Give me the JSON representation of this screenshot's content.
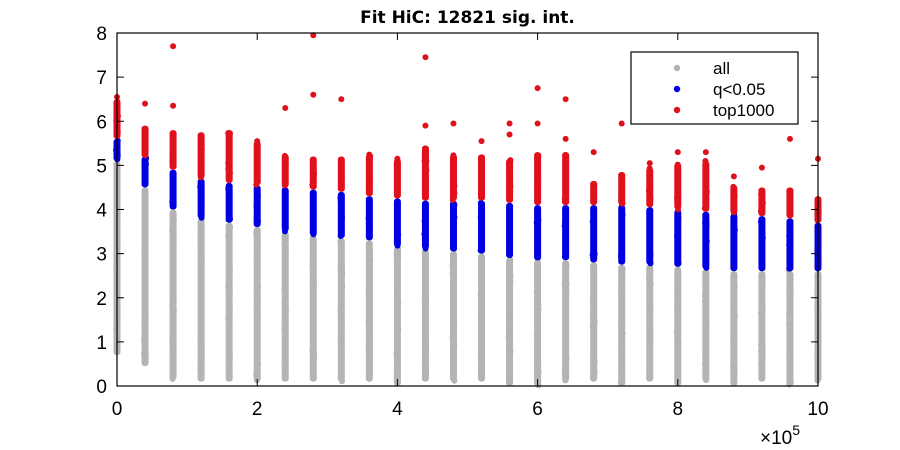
{
  "chart_data": {
    "type": "scatter",
    "title": "Fit HiC: 12821 sig. int.",
    "xlabel": "",
    "ylabel": "",
    "x_multiplier_label": "×10",
    "x_multiplier_exponent": "5",
    "xlim": [
      0,
      1000000
    ],
    "ylim": [
      0,
      8
    ],
    "xticks": [
      0,
      200000,
      400000,
      600000,
      800000,
      1000000
    ],
    "xtick_labels": [
      "0",
      "2",
      "4",
      "6",
      "8",
      "10"
    ],
    "yticks": [
      0,
      1,
      2,
      3,
      4,
      5,
      6,
      7,
      8
    ],
    "ytick_labels": [
      "0",
      "1",
      "2",
      "3",
      "4",
      "5",
      "6",
      "7",
      "8"
    ],
    "grid": false,
    "legend_position": "top-right",
    "distances": [
      0,
      40000,
      80000,
      120000,
      160000,
      200000,
      240000,
      280000,
      320000,
      360000,
      400000,
      440000,
      480000,
      520000,
      560000,
      600000,
      640000,
      680000,
      720000,
      760000,
      800000,
      840000,
      880000,
      920000,
      960000,
      1000000
    ],
    "series": [
      {
        "name": "all",
        "color": "#b4b4b4",
        "column_min": [
          0.7,
          0.45,
          0.15,
          0.1,
          0.1,
          0.1,
          0.1,
          0.1,
          0.1,
          0.1,
          0.0,
          0.1,
          0.1,
          0.1,
          0.0,
          0.0,
          0.1,
          0.1,
          0.0,
          0.1,
          0.0,
          0.1,
          0.0,
          0.1,
          0.0,
          0.1
        ],
        "column_max": [
          5.1,
          4.5,
          4.0,
          3.8,
          3.7,
          3.6,
          3.5,
          3.4,
          3.35,
          3.3,
          3.15,
          3.1,
          3.05,
          3.0,
          2.9,
          2.85,
          2.85,
          2.8,
          2.75,
          2.75,
          2.7,
          2.65,
          2.6,
          2.6,
          2.6,
          2.6
        ]
      },
      {
        "name": "q<0.05",
        "color": "#0000e0",
        "column_min": [
          5.1,
          4.5,
          4.0,
          3.8,
          3.7,
          3.6,
          3.5,
          3.4,
          3.35,
          3.3,
          3.15,
          3.1,
          3.05,
          3.0,
          2.9,
          2.85,
          2.85,
          2.8,
          2.75,
          2.75,
          2.7,
          2.65,
          2.6,
          2.6,
          2.6,
          2.6
        ],
        "column_max": [
          5.6,
          5.2,
          4.9,
          4.7,
          4.6,
          4.55,
          4.5,
          4.45,
          4.4,
          4.3,
          4.25,
          4.2,
          4.2,
          4.2,
          4.15,
          4.1,
          4.1,
          4.1,
          4.1,
          4.05,
          4.0,
          3.95,
          3.9,
          3.85,
          3.8,
          3.7
        ]
      },
      {
        "name": "top1000",
        "color": "#e0101c",
        "column_min": [
          5.6,
          5.2,
          4.9,
          4.7,
          4.6,
          4.55,
          4.5,
          4.45,
          4.4,
          4.3,
          4.25,
          4.2,
          4.2,
          4.2,
          4.15,
          4.1,
          4.1,
          4.1,
          4.1,
          4.05,
          4.0,
          3.95,
          3.9,
          3.85,
          3.8,
          3.7
        ],
        "column_max": [
          6.5,
          5.9,
          5.8,
          5.75,
          5.8,
          5.55,
          5.25,
          5.2,
          5.2,
          5.25,
          5.15,
          5.45,
          5.25,
          5.25,
          5.15,
          5.3,
          5.3,
          4.65,
          4.85,
          4.95,
          5.05,
          5.1,
          4.55,
          4.5,
          4.5,
          4.3
        ],
        "outliers": [
          [
            0,
            6.55
          ],
          [
            40000,
            6.4
          ],
          [
            80000,
            6.35
          ],
          [
            80000,
            7.7
          ],
          [
            200000,
            5.55
          ],
          [
            240000,
            6.3
          ],
          [
            280000,
            6.6
          ],
          [
            280000,
            7.95
          ],
          [
            320000,
            6.5
          ],
          [
            400000,
            5.15
          ],
          [
            440000,
            5.9
          ],
          [
            440000,
            7.45
          ],
          [
            480000,
            5.95
          ],
          [
            520000,
            5.55
          ],
          [
            560000,
            5.95
          ],
          [
            560000,
            5.7
          ],
          [
            600000,
            5.95
          ],
          [
            600000,
            6.75
          ],
          [
            640000,
            5.6
          ],
          [
            640000,
            6.5
          ],
          [
            680000,
            5.3
          ],
          [
            720000,
            5.95
          ],
          [
            760000,
            5.05
          ],
          [
            800000,
            5.3
          ],
          [
            840000,
            5.3
          ],
          [
            880000,
            4.75
          ],
          [
            920000,
            4.95
          ],
          [
            960000,
            5.6
          ],
          [
            1000000,
            5.15
          ]
        ]
      }
    ]
  }
}
